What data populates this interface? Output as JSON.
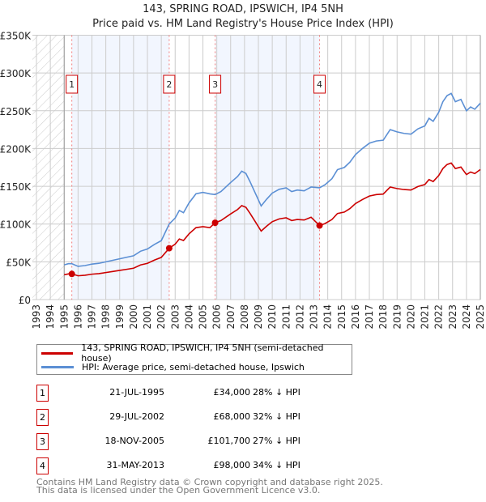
{
  "chart_data": {
    "type": "line",
    "title": "143, SPRING ROAD, IPSWICH, IP4 5NH",
    "subtitle": "Price paid vs. HM Land Registry's House Price Index (HPI)",
    "xlim": [
      1993,
      2025
    ],
    "ylim": [
      0,
      350000
    ],
    "y_ticks": [
      {
        "value": 0,
        "label": "£0"
      },
      {
        "value": 50000,
        "label": "£50K"
      },
      {
        "value": 100000,
        "label": "£100K"
      },
      {
        "value": 150000,
        "label": "£150K"
      },
      {
        "value": 200000,
        "label": "£200K"
      },
      {
        "value": 250000,
        "label": "£250K"
      },
      {
        "value": 300000,
        "label": "£300K"
      },
      {
        "value": 350000,
        "label": "£350K"
      }
    ],
    "x_ticks": [
      "1993",
      "1994",
      "1995",
      "1996",
      "1997",
      "1998",
      "1999",
      "2000",
      "2001",
      "2002",
      "2003",
      "2004",
      "2005",
      "2006",
      "2007",
      "2008",
      "2009",
      "2010",
      "2011",
      "2012",
      "2013",
      "2014",
      "2015",
      "2016",
      "2017",
      "2018",
      "2019",
      "2020",
      "2021",
      "2022",
      "2023",
      "2024",
      "2025"
    ],
    "grid": true,
    "hatched_until": 1995,
    "hpi_series": {
      "name": "HPI: Average price, semi-detached house, Ipswich",
      "color": "#5b8fd4",
      "x": [
        1995.0,
        1995.3,
        1995.55,
        1996.0,
        1996.5,
        1997.0,
        1997.5,
        1998.0,
        1998.5,
        1999.0,
        1999.5,
        2000.0,
        2000.5,
        2001.0,
        2001.5,
        2002.0,
        2002.57,
        2003.0,
        2003.3,
        2003.6,
        2004.0,
        2004.5,
        2005.0,
        2005.5,
        2005.88,
        2006.3,
        2007.0,
        2007.5,
        2007.8,
        2008.1,
        2008.4,
        2008.8,
        2009.2,
        2009.6,
        2010.0,
        2010.5,
        2011.0,
        2011.4,
        2011.8,
        2012.3,
        2012.8,
        2013.41,
        2013.8,
        2014.3,
        2014.7,
        2015.2,
        2015.6,
        2016.0,
        2016.5,
        2017.0,
        2017.5,
        2018.0,
        2018.5,
        2019.0,
        2019.5,
        2020.0,
        2020.5,
        2021.0,
        2021.3,
        2021.6,
        2022.0,
        2022.3,
        2022.6,
        2022.9,
        2023.2,
        2023.6,
        2024.0,
        2024.3,
        2024.6,
        2025.0
      ],
      "y": [
        46000,
        47500,
        47500,
        44000,
        45000,
        47000,
        48000,
        50000,
        52000,
        54000,
        56000,
        58000,
        64000,
        67000,
        73000,
        78000,
        100000,
        108000,
        118000,
        115000,
        128000,
        140000,
        142000,
        140000,
        139000,
        143000,
        155000,
        163000,
        170000,
        167000,
        156000,
        140000,
        124000,
        133000,
        141000,
        146000,
        148000,
        143000,
        145000,
        144000,
        149000,
        148000,
        152000,
        160000,
        172000,
        175000,
        182000,
        192000,
        200000,
        207000,
        210000,
        211000,
        225000,
        222000,
        220000,
        219000,
        226000,
        230000,
        240000,
        236000,
        248000,
        262000,
        270000,
        273000,
        262000,
        265000,
        250000,
        255000,
        252000,
        260000
      ]
    },
    "price_series": {
      "name": "143, SPRING ROAD, IPSWICH, IP4 5NH (semi-detached house)",
      "color": "#cc0000"
    },
    "sales": [
      {
        "id": "1",
        "x": 1995.55,
        "date": "21-JUL-1995",
        "price": 34000,
        "price_label": "£34,000",
        "hpi_label": "28% ↓ HPI"
      },
      {
        "id": "2",
        "x": 2002.57,
        "date": "29-JUL-2002",
        "price": 68000,
        "price_label": "£68,000",
        "hpi_label": "32% ↓ HPI"
      },
      {
        "id": "3",
        "x": 2005.88,
        "date": "18-NOV-2005",
        "price": 101700,
        "price_label": "£101,700",
        "hpi_label": "27% ↓ HPI"
      },
      {
        "id": "4",
        "x": 2013.41,
        "date": "31-MAY-2013",
        "price": 98000,
        "price_label": "£98,000",
        "hpi_label": "34% ↓ HPI"
      }
    ]
  },
  "footer": {
    "line1": "Contains HM Land Registry data © Crown copyright and database right 2025.",
    "line2": "This data is licensed under the Open Government Licence v3.0."
  }
}
